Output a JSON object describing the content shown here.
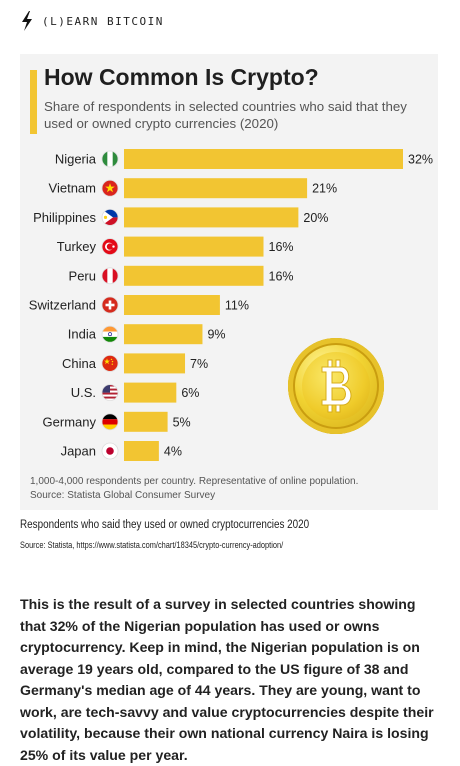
{
  "brand": {
    "name": "(L)EARN BITCOIN"
  },
  "caption": "Respondents who said they used or owned cryptocurrencies 2020",
  "source": "Source: Statista, https://www.statista.com/chart/18345/crypto-currency-adoption/",
  "body_text": "This is the result of a survey in selected countries showing that 32% of the Nigerian population has used or owns cryptocurrency. Keep in mind, the Nigerian population is on average 19 years old, compared to the US figure of 38 and Germany's median age of 44 years. They are young, want to work, are tech-savvy and value cryptocurrencies despite their volatility, because their own national currency Naira is losing 25% of its value per year.",
  "colors": {
    "bar": "#f2c532",
    "card": "#f3f3f3"
  },
  "chart_data": {
    "type": "bar",
    "orientation": "horizontal",
    "title": "How Common Is Crypto?",
    "subtitle": "Share of respondents in selected countries who said that they used or owned crypto currencies (2020)",
    "categories": [
      "Nigeria",
      "Vietnam",
      "Philippines",
      "Turkey",
      "Peru",
      "Switzerland",
      "India",
      "China",
      "U.S.",
      "Germany",
      "Japan"
    ],
    "values": [
      32,
      21,
      20,
      16,
      16,
      11,
      9,
      7,
      6,
      5,
      4
    ],
    "value_labels": [
      "32%",
      "21%",
      "20%",
      "16%",
      "16%",
      "11%",
      "9%",
      "7%",
      "6%",
      "5%",
      "4%"
    ],
    "xlim": [
      0,
      32
    ],
    "flags": [
      "flag-nigeria-icon",
      "flag-vietnam-icon",
      "flag-philippines-icon",
      "flag-turkey-icon",
      "flag-peru-icon",
      "flag-switzerland-icon",
      "flag-india-icon",
      "flag-china-icon",
      "flag-us-icon",
      "flag-germany-icon",
      "flag-japan-icon"
    ],
    "notes": [
      "1,000-4,000 respondents per country. Representative of online population.",
      "Source: Statista Global Consumer Survey"
    ],
    "grid": false,
    "legend": "none"
  }
}
